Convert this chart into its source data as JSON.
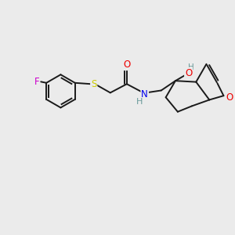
{
  "background_color": "#ebebeb",
  "atom_colors": {
    "C": "#000000",
    "H": "#6a9a9a",
    "N": "#0000ee",
    "O": "#ee0000",
    "F": "#cc00cc",
    "S": "#cccc00"
  },
  "bond_color": "#1a1a1a",
  "bond_width": 1.4,
  "figsize": [
    3.0,
    3.0
  ],
  "dpi": 100
}
